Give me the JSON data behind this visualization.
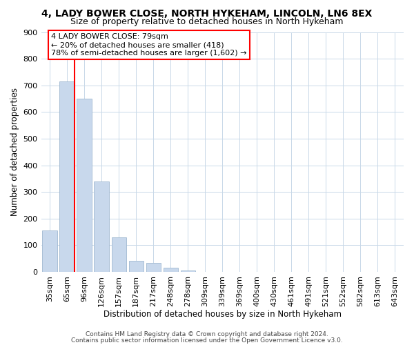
{
  "title": "4, LADY BOWER CLOSE, NORTH HYKEHAM, LINCOLN, LN6 8EX",
  "subtitle": "Size of property relative to detached houses in North Hykeham",
  "xlabel": "Distribution of detached houses by size in North Hykeham",
  "ylabel": "Number of detached properties",
  "bar_labels": [
    "35sqm",
    "65sqm",
    "96sqm",
    "126sqm",
    "157sqm",
    "187sqm",
    "217sqm",
    "248sqm",
    "278sqm",
    "309sqm",
    "339sqm",
    "369sqm",
    "400sqm",
    "430sqm",
    "461sqm",
    "491sqm",
    "521sqm",
    "552sqm",
    "582sqm",
    "613sqm",
    "643sqm"
  ],
  "bar_values": [
    155,
    715,
    650,
    340,
    130,
    42,
    33,
    15,
    5,
    0,
    0,
    0,
    0,
    0,
    0,
    0,
    0,
    0,
    0,
    0,
    0
  ],
  "bar_color": "#c8d8ec",
  "bar_edge_color": "#a0b8d0",
  "red_line_bar_index": 1,
  "ylim": [
    0,
    900
  ],
  "yticks": [
    0,
    100,
    200,
    300,
    400,
    500,
    600,
    700,
    800,
    900
  ],
  "annotation_line1": "4 LADY BOWER CLOSE: 79sqm",
  "annotation_line2": "← 20% of detached houses are smaller (418)",
  "annotation_line3": "78% of semi-detached houses are larger (1,602) →",
  "footer_line1": "Contains HM Land Registry data © Crown copyright and database right 2024.",
  "footer_line2": "Contains public sector information licensed under the Open Government Licence v3.0.",
  "background_color": "#ffffff",
  "grid_color": "#c8d8e8",
  "title_fontsize": 10,
  "subtitle_fontsize": 9,
  "axis_label_fontsize": 8.5,
  "tick_fontsize": 8,
  "annotation_fontsize": 8,
  "footer_fontsize": 6.5
}
